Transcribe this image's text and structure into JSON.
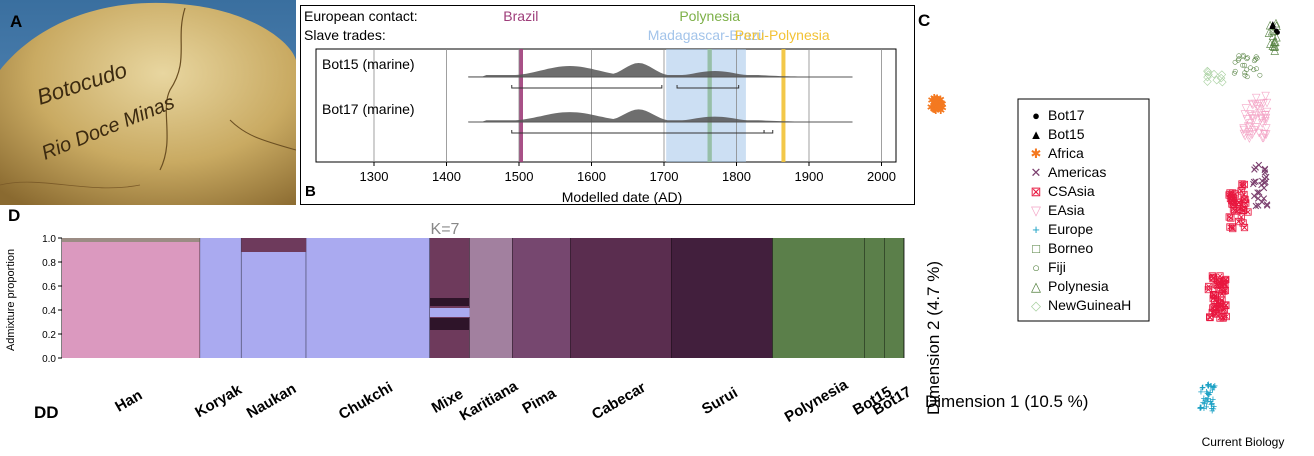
{
  "figure": {
    "credit": "Current Biology"
  },
  "panelA": {
    "letter": "A",
    "inscription_line1": "Botocudo",
    "inscription_line2": "Rio Doce Minas"
  },
  "panelB": {
    "letter": "B",
    "row_label_contact": "European contact:",
    "row_label_slave": "Slave trades:",
    "events": [
      {
        "label": "Brazil",
        "color": "#9e3d7a",
        "row": "contact",
        "start": 1500,
        "end": 1505
      },
      {
        "label": "Polynesia",
        "color": "#7db048",
        "row": "contact",
        "start": 1760,
        "end": 1766
      },
      {
        "label": "Madagascar-Brazil",
        "color": "#a3c4ea",
        "row": "slave",
        "start": 1703,
        "end": 1813
      },
      {
        "label": "Peru-Polynesia",
        "color": "#f2c235",
        "row": "slave",
        "start": 1862,
        "end": 1864
      }
    ],
    "samples": [
      {
        "label": "Bot15 (marine)",
        "range_a": [
          1490,
          1697
        ],
        "range_b": [
          1718,
          1803
        ]
      },
      {
        "label": "Bot17 (marine)",
        "range_a": [
          1490,
          1838
        ],
        "range_b": [
          1838,
          1850
        ]
      }
    ],
    "xlabel": "Modelled date (AD)",
    "xticks": [
      1300,
      1400,
      1500,
      1600,
      1700,
      1800,
      1900,
      2000
    ],
    "xlim": [
      1220,
      2020
    ]
  },
  "panelC": {
    "letter": "C",
    "xlabel": "Dimension 1 (10.5 %)",
    "ylabel": "Dimension 2 (4.7 %)",
    "legend": [
      {
        "label": "Bot17",
        "symbol": "●",
        "color": "#000000"
      },
      {
        "label": "Bot15",
        "symbol": "▲",
        "color": "#000000"
      },
      {
        "label": "Africa",
        "symbol": "✱",
        "color": "#f47920"
      },
      {
        "label": "Americas",
        "symbol": "✕",
        "color": "#7b3f6e"
      },
      {
        "label": "CSAsia",
        "symbol": "⊠",
        "color": "#e8173f"
      },
      {
        "label": "EAsia",
        "symbol": "▽",
        "color": "#f4a6c7"
      },
      {
        "label": "Europe",
        "symbol": "+",
        "color": "#1aa0c4"
      },
      {
        "label": "Borneo",
        "symbol": "□",
        "color": "#4f7d3a"
      },
      {
        "label": "Fiji",
        "symbol": "○",
        "color": "#4f7d3a"
      },
      {
        "label": "Polynesia",
        "symbol": "△",
        "color": "#4f7d3a"
      },
      {
        "label": "NewGuineaH",
        "symbol": "◇",
        "color": "#a8d0a0"
      }
    ]
  },
  "panelD": {
    "letter": "D",
    "letter2": "DD",
    "title": "K=7",
    "ylabel": "Admixture proportion",
    "yticks": [
      "0.0",
      "0.2",
      "0.4",
      "0.6",
      "0.8",
      "1.0"
    ],
    "populations": [
      {
        "label": "Han",
        "color": "#db99bf",
        "start": 0.0,
        "end": 0.164
      },
      {
        "label": "Koryak",
        "color": "#aaaaf0",
        "start": 0.164,
        "end": 0.213
      },
      {
        "label": "Naukan",
        "color": "#aaaaf0",
        "start": 0.213,
        "end": 0.29
      },
      {
        "label": "Chukchi",
        "color": "#aaaaf0",
        "start": 0.29,
        "end": 0.437
      },
      {
        "label": "Mixe",
        "color": "#6e3a5c",
        "start": 0.437,
        "end": 0.484
      },
      {
        "label": "Karitiana",
        "color": "#a2809f",
        "start": 0.484,
        "end": 0.535
      },
      {
        "label": "Pima",
        "color": "#76476f",
        "start": 0.535,
        "end": 0.604
      },
      {
        "label": "Cabecar",
        "color": "#5a2d4f",
        "start": 0.604,
        "end": 0.724
      },
      {
        "label": "Surui",
        "color": "#421f3d",
        "start": 0.724,
        "end": 0.844
      },
      {
        "label": "Polynesia",
        "color": "#5b7f4a",
        "start": 0.844,
        "end": 0.953
      },
      {
        "label": "Bot15",
        "color": "#5b7f4a",
        "start": 0.953,
        "end": 0.977
      },
      {
        "label": "Bot17",
        "color": "#5b7f4a",
        "start": 0.977,
        "end": 1.0
      }
    ]
  }
}
